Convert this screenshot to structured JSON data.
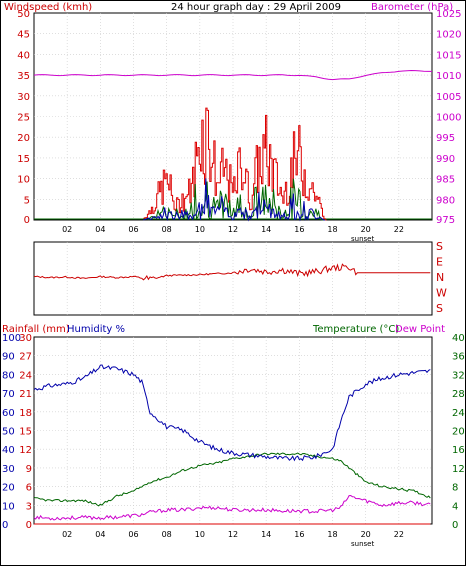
{
  "top_title": "24 hour graph day : 29 April 2009",
  "wind_label": "Windspeed (kmh)",
  "baro_label": "Barometer (hPa)",
  "sunset_label": "sunset",
  "dir_letters": [
    "S",
    "E",
    "N",
    "W",
    "S"
  ],
  "rain_label": "Rainfall (mm)",
  "humidity_label": "Humidity %",
  "temp_label": "Temperature (°C)",
  "dewpoint_label": "Dew Point",
  "x_ticks": [
    "02",
    "04",
    "06",
    "08",
    "10",
    "12",
    "14",
    "16",
    "18",
    "20",
    "22"
  ],
  "colors": {
    "wind": "#dd0000",
    "gust": "#dd0000",
    "avg_wind": "#006600",
    "wind_blue": "#0000aa",
    "baro": "#cc00cc",
    "direction": "#cc0000",
    "humidity": "#0000aa",
    "temperature": "#006600",
    "dewpoint": "#cc00cc",
    "rain": "#dd0000"
  },
  "chart_data": [
    {
      "type": "line",
      "title": "24 hour graph day : 29 April 2009",
      "x": [
        0,
        2,
        4,
        6,
        7,
        8,
        9,
        10,
        11,
        12,
        13,
        14,
        15,
        16,
        17,
        18,
        20,
        22,
        24
      ],
      "ylabel_left": "Windspeed (kmh)",
      "ylabel_right": "Barometer (hPa)",
      "yticks_left": [
        0,
        5,
        10,
        15,
        20,
        25,
        30,
        35,
        40,
        45,
        50
      ],
      "yticks_right": [
        975,
        980,
        985,
        990,
        995,
        1000,
        1005,
        1010,
        1015,
        1020,
        1025
      ],
      "series": [
        {
          "name": "Barometer (hPa)",
          "axis": "right",
          "x": [
            0,
            2,
            4,
            6,
            8,
            10,
            12,
            14,
            16,
            18,
            19,
            20,
            22,
            24
          ],
          "values": [
            1010,
            1010,
            1010,
            1010,
            1010,
            1010,
            1010,
            1010,
            1010,
            1009,
            1009,
            1010,
            1011,
            1011
          ]
        },
        {
          "name": "Windspeed (kmh)",
          "axis": "left",
          "x": [
            6.5,
            7,
            7.5,
            8,
            8.5,
            9,
            9.5,
            10,
            10.5,
            11,
            11.5,
            12,
            12.5,
            13,
            13.5,
            14,
            14.5,
            15,
            15.5,
            16,
            16.5,
            17,
            17.5
          ],
          "values": [
            0,
            3,
            8,
            13,
            4,
            7,
            10,
            28,
            28,
            12,
            16,
            8,
            20,
            6,
            18,
            22,
            14,
            7,
            17,
            20,
            12,
            8,
            0
          ]
        }
      ]
    },
    {
      "type": "line",
      "title": "",
      "x": [
        0,
        1,
        2,
        3,
        4,
        5,
        6,
        7,
        8,
        10,
        12,
        13,
        14,
        15,
        16,
        17,
        18,
        19,
        19.5,
        24
      ],
      "ylabel_right": "S E N W S",
      "series": [
        {
          "name": "",
          "values": [
            190,
            185,
            188,
            180,
            190,
            185,
            190,
            175,
            195,
            200,
            210,
            230,
            215,
            225,
            205,
            215,
            235,
            240,
            210,
            210
          ]
        }
      ]
    },
    {
      "type": "line",
      "title": "",
      "x": [
        0,
        1,
        2,
        3,
        4,
        5,
        6,
        6.5,
        7,
        8,
        9,
        10,
        11,
        12,
        13,
        14,
        15,
        16,
        17,
        18,
        18.5,
        19,
        20,
        21,
        22,
        23,
        24
      ],
      "xticks": [
        "02",
        "04",
        "06",
        "08",
        "10",
        "12",
        "14",
        "16",
        "18",
        "20",
        "22"
      ],
      "yticks_humidity": [
        0,
        10,
        20,
        30,
        40,
        50,
        60,
        70,
        80,
        90,
        100
      ],
      "yticks_rain": [
        0,
        3,
        6,
        9,
        12,
        15,
        18,
        21,
        24,
        27,
        30
      ],
      "yticks_temp": [
        0,
        4,
        8,
        12,
        16,
        20,
        24,
        28,
        32,
        36,
        40
      ],
      "series": [
        {
          "name": "Humidity %",
          "values": [
            72,
            74,
            75,
            78,
            84,
            83,
            80,
            76,
            60,
            52,
            50,
            44,
            40,
            38,
            37,
            36,
            35,
            35,
            36,
            40,
            55,
            68,
            75,
            78,
            80,
            81,
            82
          ]
        },
        {
          "name": "Temperature (°C)",
          "values": [
            5.5,
            5,
            5,
            5,
            4,
            6,
            7,
            8,
            9,
            10,
            11.5,
            12.5,
            13,
            14,
            14.5,
            15,
            15,
            15,
            14.5,
            14,
            13.5,
            12,
            9,
            8,
            7.5,
            7,
            5.5
          ]
        },
        {
          "name": "Dew Point",
          "values": [
            1.5,
            1.2,
            1.3,
            1.4,
            1.3,
            1.5,
            1.8,
            2,
            2.5,
            3,
            3,
            3.5,
            3.5,
            3,
            3,
            3,
            2.8,
            2.8,
            2.7,
            3,
            3.5,
            6,
            5,
            4,
            4.5,
            4.5,
            4
          ]
        },
        {
          "name": "Rainfall (mm)",
          "values": [
            0,
            0,
            0,
            0,
            0,
            0,
            0,
            0,
            0,
            0,
            0,
            0,
            0,
            0,
            0,
            0,
            0,
            0,
            0,
            0,
            0,
            0,
            0,
            0,
            0,
            0,
            0
          ]
        }
      ]
    }
  ]
}
